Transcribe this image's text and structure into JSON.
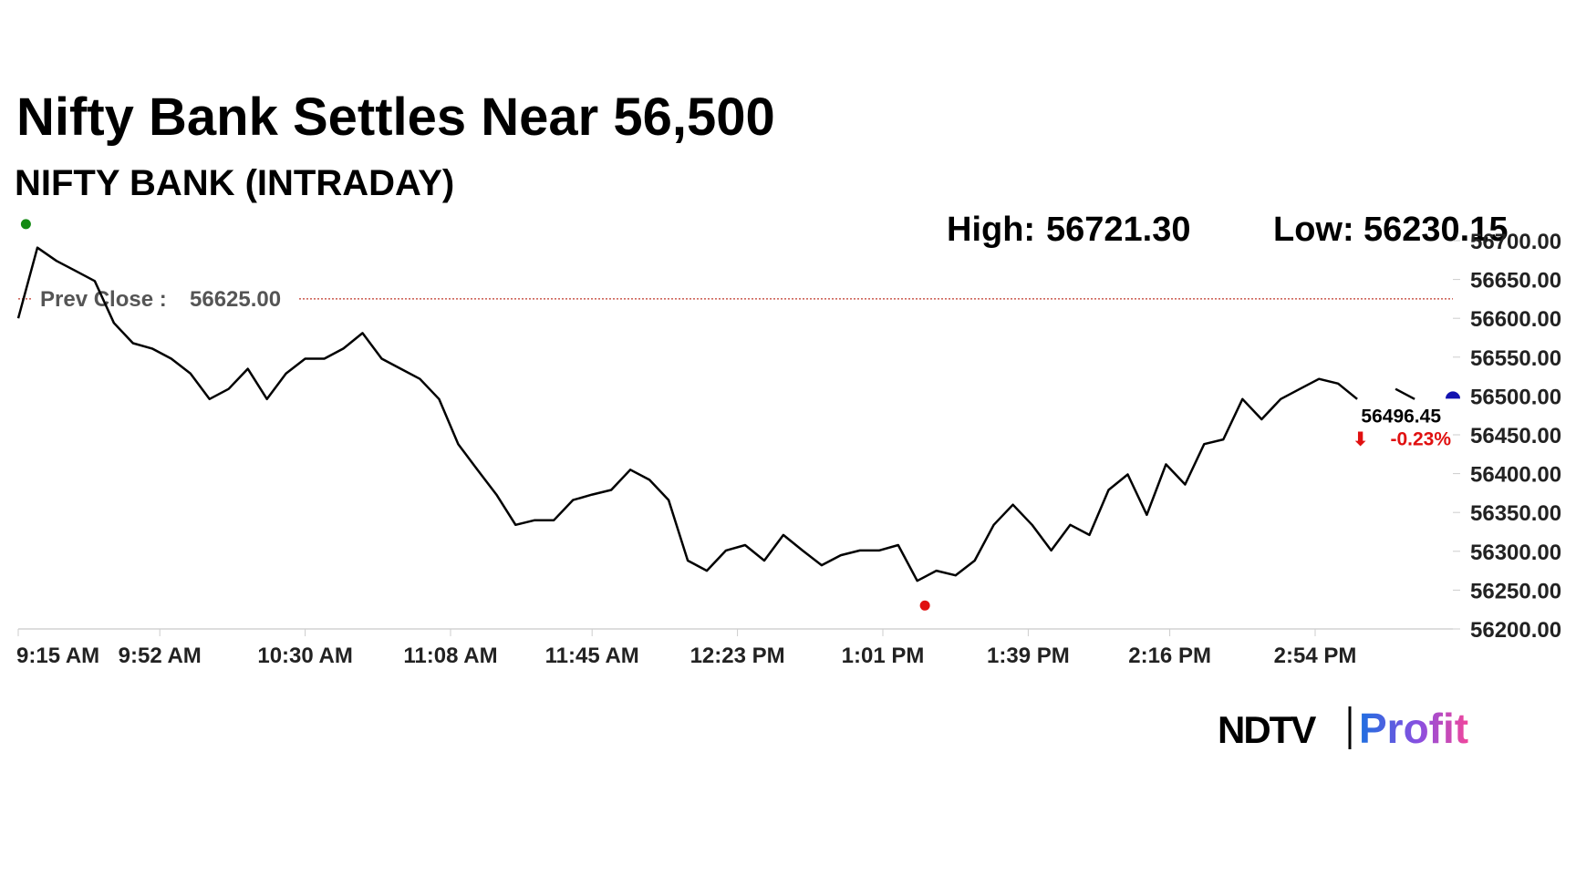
{
  "chart_data": {
    "type": "line",
    "title": "Nifty Bank Settles Near 56,500",
    "subtitle": "NIFTY BANK (INTRADAY)",
    "high_label": "High:",
    "high": {
      "value": 56721.3,
      "label": "56721.30"
    },
    "high_time": "9:17 AM",
    "low_label": "Low:",
    "low": 56230.15,
    "low_time": "1:12 PM",
    "prev_close_label": "Prev Close :",
    "prev_close": {
      "value": 56625,
      "label": "56625.00"
    },
    "close": 56496.45,
    "change": -0.23,
    "change_label": "-0.23%",
    "color": "#000000",
    "x": [
      "9:15 AM",
      "9:20 AM",
      "9:25 AM",
      "9:30 AM",
      "9:35 AM",
      "9:40 AM",
      "9:45 AM",
      "9:50 AM",
      "9:55 AM",
      "10:00 AM",
      "10:05 AM",
      "10:10 AM",
      "10:15 AM",
      "10:20 AM",
      "10:25 AM",
      "10:30 AM",
      "10:35 AM",
      "10:40 AM",
      "10:45 AM",
      "10:50 AM",
      "10:55 AM",
      "11:00 AM",
      "11:05 AM",
      "11:10 AM",
      "11:15 AM",
      "11:20 AM",
      "11:25 AM",
      "11:30 AM",
      "11:35 AM",
      "11:40 AM",
      "11:45 AM",
      "11:50 AM",
      "11:55 AM",
      "12:00 PM",
      "12:05 PM",
      "12:10 PM",
      "12:15 PM",
      "12:20 PM",
      "12:25 PM",
      "12:30 PM",
      "12:35 PM",
      "12:40 PM",
      "12:45 PM",
      "12:50 PM",
      "12:55 PM",
      "1:00 PM",
      "1:05 PM",
      "1:10 PM",
      "1:15 PM",
      "1:20 PM",
      "1:25 PM",
      "1:30 PM",
      "1:35 PM",
      "1:40 PM",
      "1:45 PM",
      "1:50 PM",
      "1:55 PM",
      "2:00 PM",
      "2:05 PM",
      "2:10 PM",
      "2:15 PM",
      "2:20 PM",
      "2:25 PM",
      "2:30 PM",
      "2:35 PM",
      "2:40 PM",
      "2:45 PM",
      "2:50 PM",
      "2:55 PM",
      "3:00 PM",
      "3:05 PM",
      "3:10 PM",
      "3:15 PM",
      "3:20 PM"
    ],
    "values": [
      56600,
      56691,
      56674,
      56661,
      56648,
      56594,
      56568,
      56561,
      56548,
      56529,
      56496,
      56509,
      56535,
      56496,
      56529,
      56548,
      56548,
      56561,
      56581,
      56548,
      56535,
      56522,
      56496,
      56438,
      56405,
      56373,
      56334,
      56340,
      56340,
      56366,
      56373,
      56379,
      56405,
      56392,
      56366,
      56288,
      56275,
      56301,
      56308,
      56288,
      56321,
      56301,
      56282,
      56295,
      56301,
      56301,
      56308,
      56262,
      56275,
      56269,
      56288,
      56334,
      56360,
      56334,
      56301,
      56334,
      56321,
      56379,
      56399,
      56347,
      56412,
      56386,
      56438,
      56444,
      56496,
      56470,
      56496,
      56509,
      56522,
      56516,
      56496,
      null,
      56509,
      56496
    ],
    "xlim": [
      "9:15 AM",
      "3:30 PM"
    ],
    "xticks": [
      "9:15 AM",
      "9:52 AM",
      "10:30 AM",
      "11:08 AM",
      "11:45 AM",
      "12:23 PM",
      "1:01 PM",
      "1:39 PM",
      "2:16 PM",
      "2:54 PM"
    ],
    "ylim": [
      56200,
      56700
    ],
    "yticks": [
      {
        "value": 56200,
        "label": "56200.00"
      },
      {
        "value": 56250,
        "label": "56250.00"
      },
      {
        "value": 56300,
        "label": "56300.00"
      },
      {
        "value": 56350,
        "label": "56350.00"
      },
      {
        "value": 56400,
        "label": "56400.00"
      },
      {
        "value": 56450,
        "label": "56450.00"
      },
      {
        "value": 56500,
        "label": "56500.00"
      },
      {
        "value": 56550,
        "label": "56550.00"
      },
      {
        "value": 56600,
        "label": "56600.00"
      },
      {
        "value": 56650,
        "label": "56650.00"
      },
      {
        "value": 56700,
        "label": "56700.00"
      }
    ]
  },
  "brand": {
    "name": "NDTV",
    "product": "Profit"
  }
}
